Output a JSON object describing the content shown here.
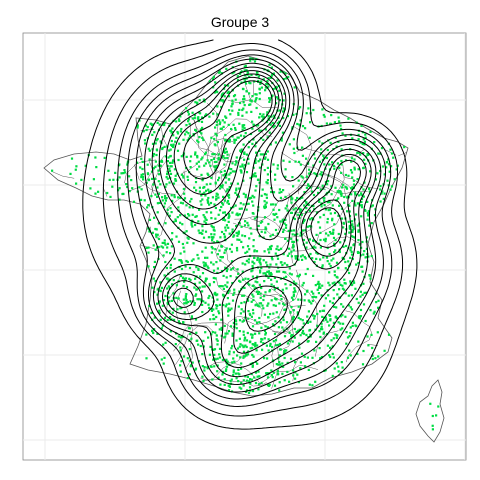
{
  "title": "Groupe 3",
  "colors": {
    "points": "#00dd44",
    "contours": "#000000",
    "borders": "#555555",
    "grid": "#ebebeb",
    "frame": "#888888",
    "background": "#ffffff"
  },
  "map": {
    "region": "France",
    "layers": [
      "department-borders",
      "observation-points",
      "density-contours"
    ],
    "grid": true
  }
}
